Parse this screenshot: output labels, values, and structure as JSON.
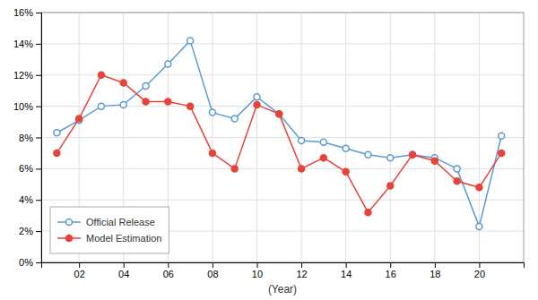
{
  "chart_data": {
    "type": "line",
    "x_label": "(Year)",
    "x": [
      2001,
      2002,
      2003,
      2004,
      2005,
      2006,
      2007,
      2008,
      2009,
      2010,
      2011,
      2012,
      2013,
      2014,
      2015,
      2016,
      2017,
      2018,
      2019,
      2020,
      2021
    ],
    "series": [
      {
        "name": "Official Release",
        "color": "#5b9bd5",
        "marker": "open-circle",
        "values": [
          8.3,
          9.1,
          10.0,
          10.1,
          11.3,
          12.7,
          14.2,
          9.6,
          9.2,
          10.6,
          9.5,
          7.8,
          7.7,
          7.3,
          6.9,
          6.7,
          6.9,
          6.7,
          6.0,
          2.3,
          8.1
        ]
      },
      {
        "name": "Model Estimation",
        "color": "#e8433a",
        "marker": "circle",
        "values": [
          7.0,
          9.2,
          12.0,
          11.5,
          10.3,
          10.3,
          10.0,
          7.0,
          6.0,
          10.1,
          9.5,
          6.0,
          6.7,
          5.8,
          3.2,
          4.9,
          6.9,
          6.5,
          5.2,
          4.8,
          7.0
        ]
      }
    ],
    "xlim": [
      2000.3,
      2022.0
    ],
    "xticks": [
      {
        "value": 2002,
        "label": "02"
      },
      {
        "value": 2004,
        "label": "04"
      },
      {
        "value": 2006,
        "label": "06"
      },
      {
        "value": 2008,
        "label": "08"
      },
      {
        "value": 2010,
        "label": "10"
      },
      {
        "value": 2012,
        "label": "12"
      },
      {
        "value": 2014,
        "label": "14"
      },
      {
        "value": 2016,
        "label": "16"
      },
      {
        "value": 2018,
        "label": "18"
      },
      {
        "value": 2020,
        "label": "20"
      }
    ],
    "ylim": [
      0,
      16
    ],
    "yticks": [
      {
        "value": 0,
        "label": "0%"
      },
      {
        "value": 2,
        "label": "2%"
      },
      {
        "value": 4,
        "label": "4%"
      },
      {
        "value": 6,
        "label": "6%"
      },
      {
        "value": 8,
        "label": "8%"
      },
      {
        "value": 10,
        "label": "10%"
      },
      {
        "value": 12,
        "label": "12%"
      },
      {
        "value": 14,
        "label": "14%"
      },
      {
        "value": 16,
        "label": "16%"
      }
    ],
    "grid": true,
    "legend": "lower left"
  }
}
